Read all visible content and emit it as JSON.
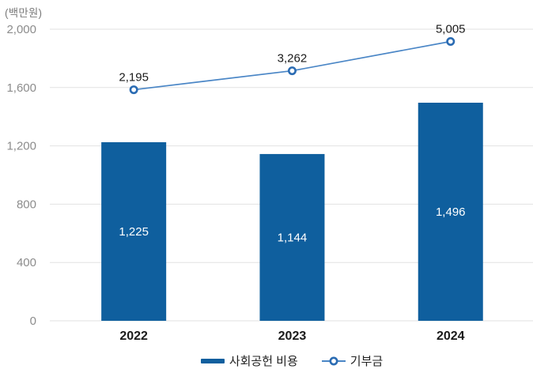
{
  "chart_data": {
    "type": "combo",
    "title": "",
    "unit_label": "(백만원)",
    "categories": [
      "2022",
      "2023",
      "2024"
    ],
    "series": [
      {
        "name": "사회공헌 비용",
        "type": "bar",
        "values": [
          1225,
          1144,
          1496
        ],
        "value_labels": [
          "1,225",
          "1,144",
          "1,496"
        ],
        "color": "#0f5f9e"
      },
      {
        "name": "기부금",
        "type": "line",
        "values": [
          2195,
          3262,
          5005
        ],
        "value_labels": [
          "2,195",
          "3,262",
          "5,005"
        ],
        "color": "#4a86c6",
        "marker": {
          "shape": "circle",
          "fill": "#ffffff",
          "stroke": "#2b6cb3"
        },
        "axis": "hidden-secondary",
        "display_on_primary_axis": [
          1585,
          1715,
          1916
        ]
      }
    ],
    "ylim": [
      0,
      2000
    ],
    "yticks": [
      0,
      400,
      800,
      1200,
      1600,
      2000
    ],
    "ytick_labels": [
      "0",
      "400",
      "800",
      "1,200",
      "1,600",
      "2,000"
    ],
    "grid": "horizontal",
    "gridline_color": "#e2e2e2",
    "legend_position": "bottom",
    "text_colors": {
      "y_ticks": "#8c8c8c",
      "unit": "#7a7a7a",
      "x_labels": "#1a1a1a",
      "point_labels": "#1a1a1a",
      "bar_labels": "#ffffff",
      "legend": "#222222"
    }
  }
}
